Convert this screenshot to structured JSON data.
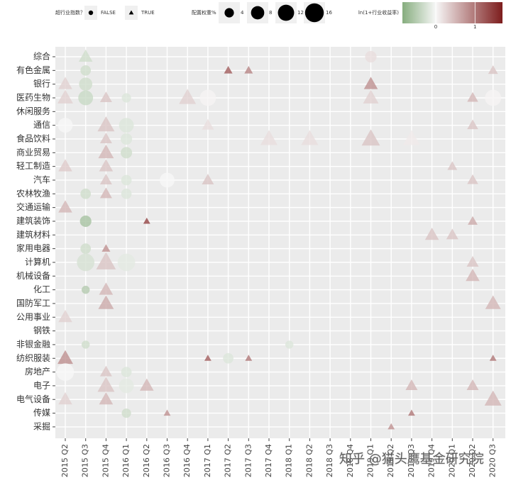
{
  "chart_data": {
    "type": "scatter",
    "x_categories": [
      "2015 Q2",
      "2015 Q3",
      "2015 Q4",
      "2016 Q1",
      "2016 Q2",
      "2016 Q3",
      "2016 Q4",
      "2017 Q1",
      "2017 Q2",
      "2017 Q3",
      "2017 Q4",
      "2018 Q1",
      "2018 Q2",
      "2018 Q3",
      "2018 Q4",
      "2019 Q1",
      "2019 Q2",
      "2019 Q3",
      "2019 Q4",
      "2020 Q1",
      "2020 Q2",
      "2020 Q3"
    ],
    "y_categories": [
      "综合",
      "有色金属",
      "银行",
      "医药生物",
      "休闲服务",
      "通信",
      "食品饮料",
      "商业贸易",
      "轻工制造",
      "汽车",
      "农林牧渔",
      "交通运输",
      "建筑装饰",
      "建筑材料",
      "家用电器",
      "计算机",
      "机械设备",
      "化工",
      "国防军工",
      "公用事业",
      "钢铁",
      "非银金融",
      "纺织服装",
      "房地产",
      "电子",
      "电气设备",
      "传媒",
      "采掘"
    ],
    "shape_legend": {
      "title": "超行业指数？",
      "labels": [
        "FALSE",
        "TRUE"
      ]
    },
    "size_legend": {
      "title": "配置权重%",
      "sizes": [
        4,
        8,
        12,
        16
      ]
    },
    "color_legend": {
      "title": "ln(1+行业收益率)",
      "lim": [
        -0.85,
        1.7
      ],
      "ticks": [
        0,
        1
      ],
      "colors": [
        "#86ad7e",
        "#f7f7f7",
        "#7d1d1d"
      ]
    },
    "grid": true,
    "watermark": "知乎 @猫头鹰基金研究院",
    "points": [
      {
        "x": "2015 Q3",
        "y": "综合",
        "exceeds": true,
        "size": 8,
        "value": -0.3
      },
      {
        "x": "2019 Q1",
        "y": "综合",
        "exceeds": false,
        "size": 6,
        "value": 0.2
      },
      {
        "x": "2015 Q3",
        "y": "有色金属",
        "exceeds": false,
        "size": 5,
        "value": -0.3
      },
      {
        "x": "2017 Q2",
        "y": "有色金属",
        "exceeds": true,
        "size": 3,
        "value": 1.2
      },
      {
        "x": "2017 Q3",
        "y": "有色金属",
        "exceeds": true,
        "size": 3,
        "value": 0.9
      },
      {
        "x": "2020 Q3",
        "y": "有色金属",
        "exceeds": true,
        "size": 4,
        "value": 0.4
      },
      {
        "x": "2015 Q2",
        "y": "银行",
        "exceeds": true,
        "size": 8,
        "value": 0.3
      },
      {
        "x": "2015 Q3",
        "y": "银行",
        "exceeds": false,
        "size": 8,
        "value": -0.3
      },
      {
        "x": "2019 Q1",
        "y": "银行",
        "exceeds": true,
        "size": 8,
        "value": 0.8
      },
      {
        "x": "2015 Q2",
        "y": "医药生物",
        "exceeds": true,
        "size": 10,
        "value": 0.3
      },
      {
        "x": "2015 Q3",
        "y": "医药生物",
        "exceeds": false,
        "size": 10,
        "value": -0.35
      },
      {
        "x": "2015 Q4",
        "y": "医药生物",
        "exceeds": true,
        "size": 6,
        "value": 0.4
      },
      {
        "x": "2016 Q1",
        "y": "医药生物",
        "exceeds": false,
        "size": 4,
        "value": -0.2
      },
      {
        "x": "2016 Q4",
        "y": "医药生物",
        "exceeds": true,
        "size": 12,
        "value": 0.3
      },
      {
        "x": "2017 Q1",
        "y": "医药生物",
        "exceeds": false,
        "size": 12,
        "value": 0.02
      },
      {
        "x": "2019 Q1",
        "y": "医药生物",
        "exceeds": true,
        "size": 10,
        "value": 0.3
      },
      {
        "x": "2020 Q2",
        "y": "医药生物",
        "exceeds": true,
        "size": 5,
        "value": 0.5
      },
      {
        "x": "2020 Q3",
        "y": "医药生物",
        "exceeds": false,
        "size": 12,
        "value": 0.02
      },
      {
        "x": "2015 Q2",
        "y": "通信",
        "exceeds": false,
        "size": 10,
        "value": 0.0
      },
      {
        "x": "2015 Q4",
        "y": "通信",
        "exceeds": true,
        "size": 12,
        "value": 0.4
      },
      {
        "x": "2016 Q1",
        "y": "通信",
        "exceeds": false,
        "size": 10,
        "value": -0.2
      },
      {
        "x": "2017 Q1",
        "y": "通信",
        "exceeds": true,
        "size": 6,
        "value": 0.2
      },
      {
        "x": "2020 Q2",
        "y": "通信",
        "exceeds": true,
        "size": 5,
        "value": 0.4
      },
      {
        "x": "2015 Q4",
        "y": "食品饮料",
        "exceeds": true,
        "size": 6,
        "value": 0.4
      },
      {
        "x": "2016 Q1",
        "y": "食品饮料",
        "exceeds": false,
        "size": 6,
        "value": -0.2
      },
      {
        "x": "2017 Q4",
        "y": "食品饮料",
        "exceeds": true,
        "size": 12,
        "value": 0.2
      },
      {
        "x": "2018 Q2",
        "y": "食品饮料",
        "exceeds": true,
        "size": 12,
        "value": 0.2
      },
      {
        "x": "2019 Q1",
        "y": "食品饮料",
        "exceeds": true,
        "size": 14,
        "value": 0.4
      },
      {
        "x": "2019 Q3",
        "y": "食品饮料",
        "exceeds": true,
        "size": 12,
        "value": 0.1
      },
      {
        "x": "2015 Q4",
        "y": "商业贸易",
        "exceeds": true,
        "size": 10,
        "value": 0.5
      },
      {
        "x": "2016 Q1",
        "y": "商业贸易",
        "exceeds": false,
        "size": 6,
        "value": -0.3
      },
      {
        "x": "2015 Q2",
        "y": "轻工制造",
        "exceeds": true,
        "size": 8,
        "value": 0.35
      },
      {
        "x": "2015 Q4",
        "y": "轻工制造",
        "exceeds": true,
        "size": 8,
        "value": 0.4
      },
      {
        "x": "2020 Q1",
        "y": "轻工制造",
        "exceeds": true,
        "size": 4,
        "value": 0.4
      },
      {
        "x": "2015 Q4",
        "y": "汽车",
        "exceeds": true,
        "size": 6,
        "value": 0.4
      },
      {
        "x": "2016 Q1",
        "y": "汽车",
        "exceeds": false,
        "size": 5,
        "value": -0.2
      },
      {
        "x": "2016 Q3",
        "y": "汽车",
        "exceeds": false,
        "size": 10,
        "value": 0.0
      },
      {
        "x": "2017 Q1",
        "y": "汽车",
        "exceeds": true,
        "size": 6,
        "value": 0.4
      },
      {
        "x": "2020 Q2",
        "y": "汽车",
        "exceeds": true,
        "size": 5,
        "value": 0.4
      },
      {
        "x": "2015 Q3",
        "y": "农林牧渔",
        "exceeds": false,
        "size": 5,
        "value": -0.3
      },
      {
        "x": "2015 Q4",
        "y": "农林牧渔",
        "exceeds": true,
        "size": 6,
        "value": 0.5
      },
      {
        "x": "2016 Q1",
        "y": "农林牧渔",
        "exceeds": false,
        "size": 5,
        "value": -0.2
      },
      {
        "x": "2015 Q2",
        "y": "交通运输",
        "exceeds": true,
        "size": 8,
        "value": 0.5
      },
      {
        "x": "2015 Q3",
        "y": "建筑装饰",
        "exceeds": false,
        "size": 6,
        "value": -0.6
      },
      {
        "x": "2016 Q2",
        "y": "建筑装饰",
        "exceeds": true,
        "size": 2,
        "value": 1.4
      },
      {
        "x": "2020 Q2",
        "y": "建筑装饰",
        "exceeds": true,
        "size": 4,
        "value": 0.6
      },
      {
        "x": "2019 Q4",
        "y": "建筑材料",
        "exceeds": true,
        "size": 8,
        "value": 0.4
      },
      {
        "x": "2020 Q1",
        "y": "建筑材料",
        "exceeds": true,
        "size": 6,
        "value": 0.4
      },
      {
        "x": "2015 Q3",
        "y": "家用电器",
        "exceeds": false,
        "size": 5,
        "value": -0.3
      },
      {
        "x": "2015 Q4",
        "y": "家用电器",
        "exceeds": true,
        "size": 3,
        "value": 0.8
      },
      {
        "x": "2015 Q3",
        "y": "计算机",
        "exceeds": false,
        "size": 14,
        "value": -0.25
      },
      {
        "x": "2015 Q4",
        "y": "计算机",
        "exceeds": true,
        "size": 16,
        "value": 0.4
      },
      {
        "x": "2016 Q1",
        "y": "计算机",
        "exceeds": false,
        "size": 14,
        "value": -0.15
      },
      {
        "x": "2020 Q2",
        "y": "计算机",
        "exceeds": true,
        "size": 6,
        "value": 0.4
      },
      {
        "x": "2020 Q2",
        "y": "机械设备",
        "exceeds": true,
        "size": 8,
        "value": 0.5
      },
      {
        "x": "2015 Q3",
        "y": "化工",
        "exceeds": false,
        "size": 3,
        "value": -0.5
      },
      {
        "x": "2015 Q4",
        "y": "化工",
        "exceeds": true,
        "size": 8,
        "value": 0.5
      },
      {
        "x": "2015 Q4",
        "y": "国防军工",
        "exceeds": true,
        "size": 10,
        "value": 0.6
      },
      {
        "x": "2020 Q3",
        "y": "国防军工",
        "exceeds": true,
        "size": 10,
        "value": 0.5
      },
      {
        "x": "2015 Q2",
        "y": "公用事业",
        "exceeds": true,
        "size": 8,
        "value": 0.3
      },
      {
        "x": "2015 Q3",
        "y": "非银金融",
        "exceeds": false,
        "size": 3,
        "value": -0.3
      },
      {
        "x": "2018 Q1",
        "y": "非银金融",
        "exceeds": false,
        "size": 3,
        "value": -0.2
      },
      {
        "x": "2015 Q2",
        "y": "纺织服装",
        "exceeds": true,
        "size": 10,
        "value": 0.8
      },
      {
        "x": "2017 Q1",
        "y": "纺织服装",
        "exceeds": true,
        "size": 2,
        "value": 1.2
      },
      {
        "x": "2017 Q2",
        "y": "纺织服装",
        "exceeds": false,
        "size": 5,
        "value": -0.2
      },
      {
        "x": "2017 Q3",
        "y": "纺织服装",
        "exceeds": true,
        "size": 2,
        "value": 1.0
      },
      {
        "x": "2020 Q3",
        "y": "纺织服装",
        "exceeds": true,
        "size": 2,
        "value": 1.0
      },
      {
        "x": "2015 Q2",
        "y": "房地产",
        "exceeds": false,
        "size": 14,
        "value": 0.0
      },
      {
        "x": "2015 Q4",
        "y": "房地产",
        "exceeds": true,
        "size": 6,
        "value": 0.4
      },
      {
        "x": "2016 Q1",
        "y": "房地产",
        "exceeds": false,
        "size": 5,
        "value": -0.2
      },
      {
        "x": "2015 Q4",
        "y": "电子",
        "exceeds": true,
        "size": 12,
        "value": 0.4
      },
      {
        "x": "2016 Q1",
        "y": "电子",
        "exceeds": false,
        "size": 10,
        "value": -0.15
      },
      {
        "x": "2016 Q2",
        "y": "电子",
        "exceeds": true,
        "size": 8,
        "value": 0.5
      },
      {
        "x": "2019 Q3",
        "y": "电子",
        "exceeds": true,
        "size": 6,
        "value": 0.5
      },
      {
        "x": "2020 Q2",
        "y": "电子",
        "exceeds": true,
        "size": 6,
        "value": 0.5
      },
      {
        "x": "2015 Q2",
        "y": "电气设备",
        "exceeds": true,
        "size": 8,
        "value": 0.3
      },
      {
        "x": "2015 Q4",
        "y": "电气设备",
        "exceeds": true,
        "size": 8,
        "value": 0.5
      },
      {
        "x": "2020 Q3",
        "y": "电气设备",
        "exceeds": true,
        "size": 12,
        "value": 0.5
      },
      {
        "x": "2016 Q1",
        "y": "传媒",
        "exceeds": false,
        "size": 4,
        "value": -0.3
      },
      {
        "x": "2016 Q3",
        "y": "传媒",
        "exceeds": true,
        "size": 2,
        "value": 0.8
      },
      {
        "x": "2019 Q3",
        "y": "传媒",
        "exceeds": true,
        "size": 2,
        "value": 1.0
      },
      {
        "x": "2019 Q2",
        "y": "采掘",
        "exceeds": true,
        "size": 2,
        "value": 0.8
      }
    ]
  }
}
